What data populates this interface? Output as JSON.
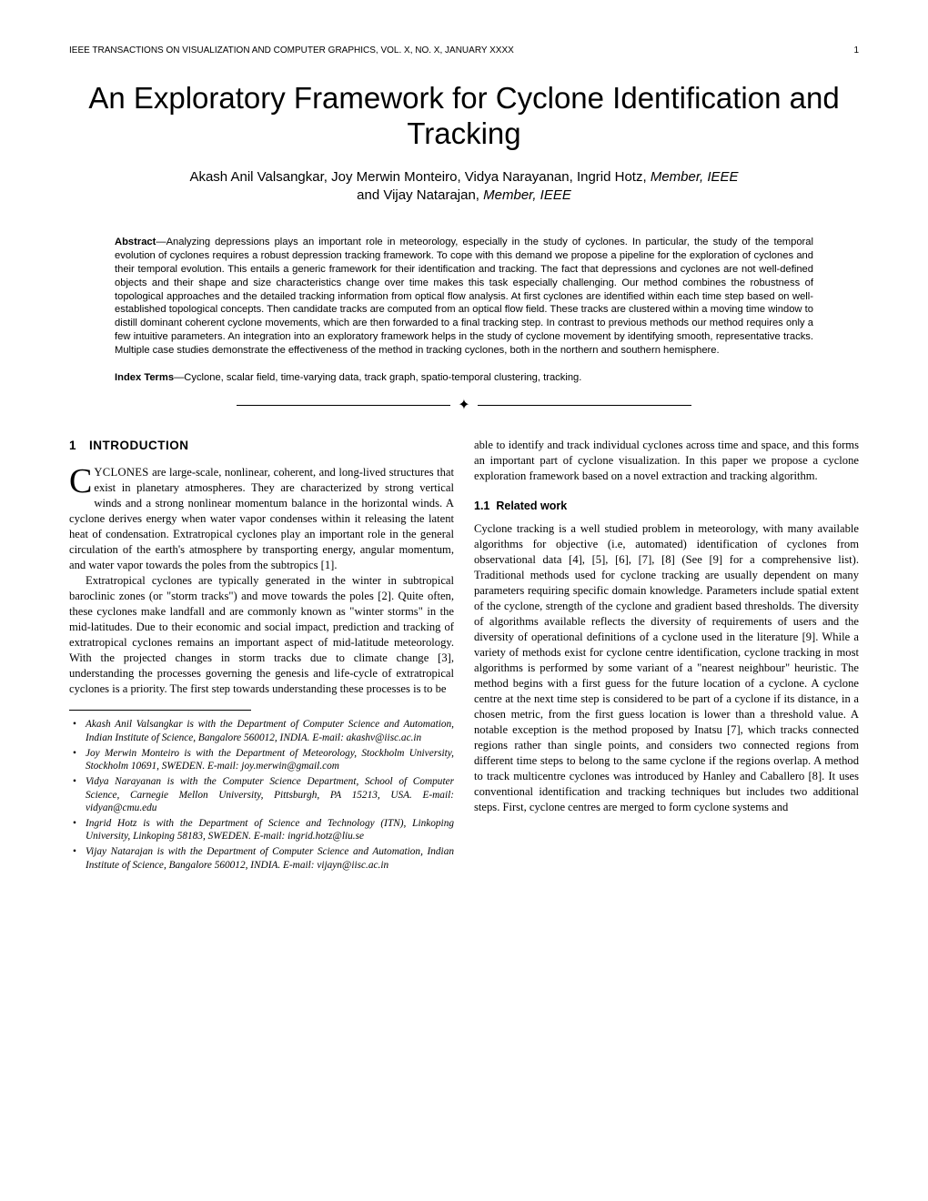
{
  "header": {
    "journal": "IEEE TRANSACTIONS ON VISUALIZATION AND COMPUTER GRAPHICS, VOL. X, NO. X, JANUARY XXXX",
    "page": "1"
  },
  "title": "An Exploratory Framework for Cyclone Identification and Tracking",
  "authors": {
    "line1": "Akash Anil Valsangkar, Joy Merwin Monteiro, Vidya Narayanan, Ingrid Hotz, ",
    "member1": "Member, IEEE",
    "line2": "and Vijay Natarajan, ",
    "member2": "Member, IEEE"
  },
  "abstract": {
    "label": "Abstract",
    "text": "—Analyzing depressions plays an important role in meteorology, especially in the study of cyclones. In particular, the study of the temporal evolution of cyclones requires a robust depression tracking framework. To cope with this demand we propose a pipeline for the exploration of cyclones and their temporal evolution. This entails a generic framework for their identification and tracking. The fact that depressions and cyclones are not well-defined objects and their shape and size characteristics change over time makes this task especially challenging. Our method combines the robustness of topological approaches and the detailed tracking information from optical flow analysis. At first cyclones are identified within each time step based on well-established topological concepts. Then candidate tracks are computed from an optical flow field. These tracks are clustered within a moving time window to distill dominant coherent cyclone movements, which are then forwarded to a final tracking step. In contrast to previous methods our method requires only a few intuitive parameters. An integration into an exploratory framework helps in the study of cyclone movement by identifying smooth, representative tracks. Multiple case studies demonstrate the effectiveness of the method in tracking cyclones, both in the northern and southern hemisphere."
  },
  "indexTerms": {
    "label": "Index Terms",
    "text": "—Cyclone, scalar field, time-varying data, track graph, spatio-temporal clustering, tracking."
  },
  "section1": {
    "num": "1",
    "title": "INTRODUCTION"
  },
  "col1": {
    "p1_first": "C",
    "p1_caps": "YCLONES",
    "p1_rest": " are large-scale, nonlinear, coherent, and long-lived structures that exist in planetary atmospheres. They are characterized by strong vertical winds and a strong nonlinear momentum balance in the horizontal winds. A cyclone derives energy when water vapor condenses within it releasing the latent heat of condensation. Extratropical cyclones play an important role in the general circulation of the earth's atmosphere by transporting energy, angular momentum, and water vapor towards the poles from the subtropics [1].",
    "p2": "Extratropical cyclones are typically generated in the winter in subtropical baroclinic zones (or \"storm tracks\") and move towards the poles [2]. Quite often, these cyclones make landfall and are commonly known as \"winter storms\" in the mid-latitudes. Due to their economic and social impact, prediction and tracking of extratropical cyclones remains an important aspect of mid-latitude meteorology. With the projected changes in storm tracks due to climate change [3], understanding the processes governing the genesis and life-cycle of extratropical cyclones is a priority. The first step towards understanding these processes is to be"
  },
  "footnotes": {
    "f1": "Akash Anil Valsangkar is with the Department of Computer Science and Automation, Indian Institute of Science, Bangalore 560012, INDIA. E-mail: akashv@iisc.ac.in",
    "f2": "Joy Merwin Monteiro is with the Department of Meteorology, Stockholm University, Stockholm 10691, SWEDEN. E-mail: joy.merwin@gmail.com",
    "f3": "Vidya Narayanan is with the Computer Science Department, School of Computer Science, Carnegie Mellon University, Pittsburgh, PA 15213, USA. E-mail: vidyan@cmu.edu",
    "f4": "Ingrid Hotz is with the Department of Science and Technology (ITN), Linkoping University, Linkoping 58183, SWEDEN. E-mail: ingrid.hotz@liu.se",
    "f5": "Vijay Natarajan is with the Department of Computer Science and Automation, Indian Institute of Science, Bangalore 560012, INDIA. E-mail: vijayn@iisc.ac.in"
  },
  "col2": {
    "p1": "able to identify and track individual cyclones across time and space, and this forms an important part of cyclone visualization. In this paper we propose a cyclone exploration framework based on a novel extraction and tracking algorithm.",
    "sub11_num": "1.1",
    "sub11_title": "Related work",
    "p2": "Cyclone tracking is a well studied problem in meteorology, with many available algorithms for objective (i.e, automated) identification of cyclones from observational data [4], [5], [6], [7], [8] (See [9] for a comprehensive list). Traditional methods used for cyclone tracking are usually dependent on many parameters requiring specific domain knowledge. Parameters include spatial extent of the cyclone, strength of the cyclone and gradient based thresholds. The diversity of algorithms available reflects the diversity of requirements of users and the diversity of operational definitions of a cyclone used in the literature [9]. While a variety of methods exist for cyclone centre identification, cyclone tracking in most algorithms is performed by some variant of a \"nearest neighbour\" heuristic. The method begins with a first guess for the future location of a cyclone. A cyclone centre at the next time step is considered to be part of a cyclone if its distance, in a chosen metric, from the first guess location is lower than a threshold value. A notable exception is the method proposed by Inatsu [7], which tracks connected regions rather than single points, and considers two connected regions from different time steps to belong to the same cyclone if the regions overlap. A method to track multicentre cyclones was introduced by Hanley and Caballero [8]. It uses conventional identification and tracking techniques but includes two additional steps. First, cyclone centres are merged to form cyclone systems and"
  }
}
